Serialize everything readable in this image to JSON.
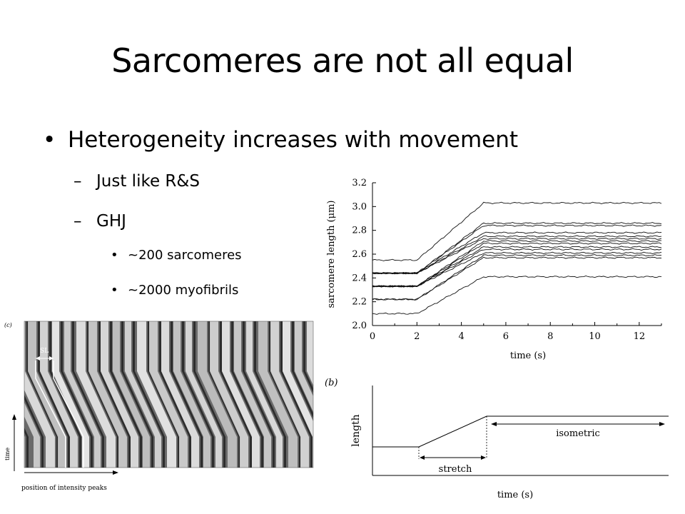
{
  "slide": {
    "title": "Sarcomeres are not all equal",
    "bullets": [
      {
        "level": 1,
        "mark": "•",
        "text": "Heterogeneity increases with movement"
      },
      {
        "level": 2,
        "mark": "–",
        "text": "Just like R&S"
      },
      {
        "level": 2,
        "mark": "–",
        "text": "GHJ"
      },
      {
        "level": 3,
        "mark": "•",
        "text": "~200 sarcomeres"
      },
      {
        "level": 3,
        "mark": "•",
        "text": "~2000 myofibrils"
      }
    ]
  },
  "figure_c": {
    "panel_label": "(c)",
    "sl_label": "SL",
    "time_label": "time",
    "x_label": "position of intensity peaks"
  },
  "chart_data": [
    {
      "type": "line",
      "xlabel": "time (s)",
      "ylabel": "sarcomere length (μm)",
      "xlim": [
        0,
        13
      ],
      "ylim": [
        2.0,
        3.2
      ],
      "x_ticks": [
        0,
        2,
        4,
        6,
        8,
        10,
        12
      ],
      "y_ticks": [
        2.0,
        2.2,
        2.4,
        2.6,
        2.8,
        3.0,
        3.2
      ],
      "stretch_start": 2.0,
      "stretch_end": 5.0,
      "series": [
        {
          "values": [
            2.55,
            3.03
          ]
        },
        {
          "values": [
            2.44,
            2.86
          ]
        },
        {
          "values": [
            2.44,
            2.84
          ]
        },
        {
          "values": [
            2.44,
            2.78
          ]
        },
        {
          "values": [
            2.44,
            2.75
          ]
        },
        {
          "values": [
            2.44,
            2.73
          ]
        },
        {
          "values": [
            2.33,
            2.71
          ]
        },
        {
          "values": [
            2.33,
            2.69
          ]
        },
        {
          "values": [
            2.33,
            2.66
          ]
        },
        {
          "values": [
            2.33,
            2.64
          ]
        },
        {
          "values": [
            2.33,
            2.61
          ]
        },
        {
          "values": [
            2.22,
            2.59
          ]
        },
        {
          "values": [
            2.22,
            2.57
          ]
        },
        {
          "values": [
            2.1,
            2.41
          ]
        }
      ]
    },
    {
      "type": "line",
      "panel_label": "(b)",
      "xlabel": "time (s)",
      "ylabel": "length",
      "annotations": [
        "stretch",
        "isometric"
      ]
    }
  ]
}
